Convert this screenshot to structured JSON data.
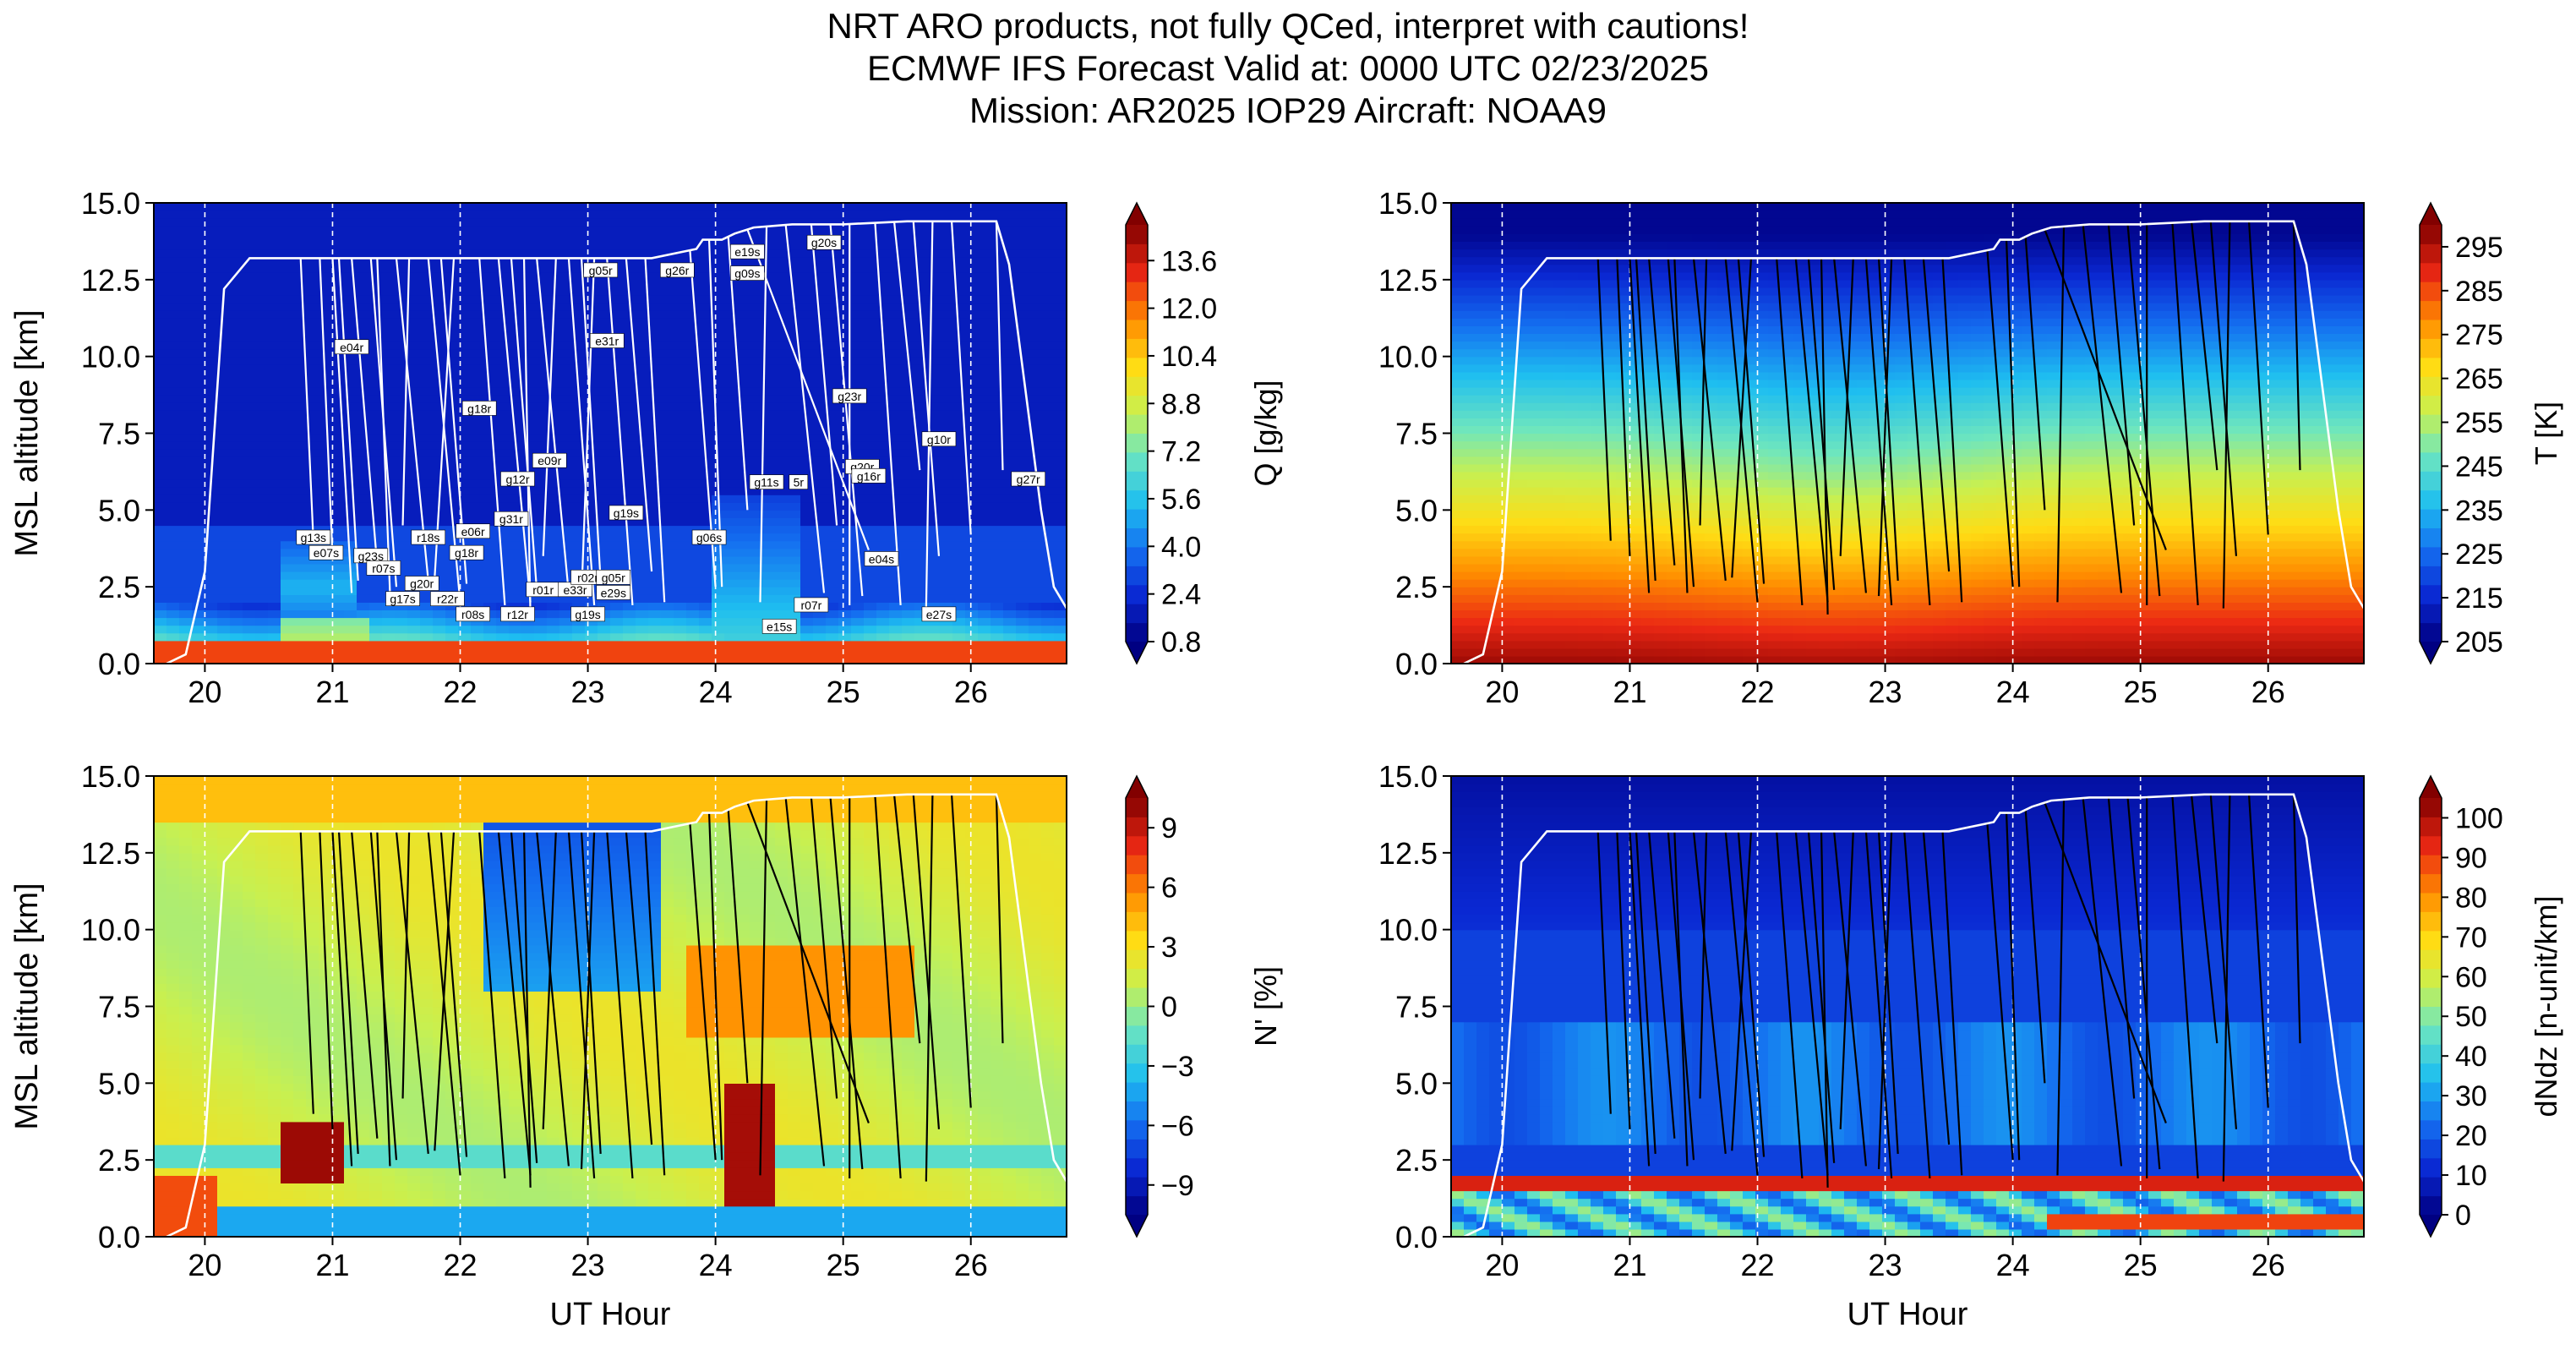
{
  "figure": {
    "title_lines": [
      "NRT ARO products, not fully QCed, interpret with cautions!",
      "ECMWF IFS Forecast Valid at: 0000 UTC 02/23/2025",
      "Mission: AR2025 IOP29 Aircraft: NOAA9"
    ]
  },
  "chart_data": [
    {
      "type": "heatmap",
      "panel": "top-left",
      "variable": "Q",
      "xlabel": "",
      "ylabel": "MSL altitude [km]",
      "colorbar_label": "Q [g/kg]",
      "colorbar_ticks": [
        0.8,
        2.4,
        4.0,
        5.6,
        7.2,
        8.8,
        10.4,
        12.0,
        13.6
      ],
      "clim": [
        0.8,
        14.8
      ],
      "xlim": [
        19.6,
        26.75
      ],
      "ylim": [
        0,
        15
      ],
      "xticks": [
        20,
        21,
        22,
        23,
        24,
        25,
        26
      ],
      "yticks": [
        0.0,
        2.5,
        5.0,
        7.5,
        10.0,
        12.5,
        15.0
      ],
      "overlay_color": "white",
      "sonde_labels": [
        {
          "label": "e04r",
          "x": 21.15,
          "y": 10.3
        },
        {
          "label": "g18r",
          "x": 22.15,
          "y": 8.3
        },
        {
          "label": "e09r",
          "x": 22.7,
          "y": 6.6
        },
        {
          "label": "g05r",
          "x": 23.1,
          "y": 12.8
        },
        {
          "label": "e31r",
          "x": 23.15,
          "y": 10.5
        },
        {
          "label": "g26r",
          "x": 23.7,
          "y": 12.8
        },
        {
          "label": "e19s",
          "x": 24.25,
          "y": 13.4
        },
        {
          "label": "g09s",
          "x": 24.25,
          "y": 12.7
        },
        {
          "label": "g20s",
          "x": 24.85,
          "y": 13.7
        },
        {
          "label": "g23r",
          "x": 25.05,
          "y": 8.7
        },
        {
          "label": "g10r",
          "x": 25.75,
          "y": 7.3
        },
        {
          "label": "g27r",
          "x": 26.45,
          "y": 6.0
        },
        {
          "label": "g12r",
          "x": 22.45,
          "y": 6.0
        },
        {
          "label": "g31r",
          "x": 22.4,
          "y": 4.7
        },
        {
          "label": "g19s",
          "x": 23.3,
          "y": 4.9
        },
        {
          "label": "g13s",
          "x": 20.85,
          "y": 4.1
        },
        {
          "label": "e07s",
          "x": 20.95,
          "y": 3.6
        },
        {
          "label": "g23s",
          "x": 21.3,
          "y": 3.5
        },
        {
          "label": "r07s",
          "x": 21.4,
          "y": 3.1
        },
        {
          "label": "r18s",
          "x": 21.75,
          "y": 4.1
        },
        {
          "label": "e06r",
          "x": 22.1,
          "y": 4.3
        },
        {
          "label": "g18r",
          "x": 22.05,
          "y": 3.6
        },
        {
          "label": "g20r",
          "x": 21.7,
          "y": 2.6
        },
        {
          "label": "g17s",
          "x": 21.55,
          "y": 2.1
        },
        {
          "label": "r22r",
          "x": 21.9,
          "y": 2.1
        },
        {
          "label": "r08s",
          "x": 22.1,
          "y": 1.6
        },
        {
          "label": "r12r",
          "x": 22.45,
          "y": 1.6
        },
        {
          "label": "r01r",
          "x": 22.65,
          "y": 2.4
        },
        {
          "label": "e33r",
          "x": 22.9,
          "y": 2.4
        },
        {
          "label": "r02r",
          "x": 23.0,
          "y": 2.8
        },
        {
          "label": "g05r",
          "x": 23.2,
          "y": 2.8
        },
        {
          "label": "e29s",
          "x": 23.2,
          "y": 2.3
        },
        {
          "label": "g19s",
          "x": 23.0,
          "y": 1.6
        },
        {
          "label": "g06s",
          "x": 23.95,
          "y": 4.1
        },
        {
          "label": "g11s",
          "x": 24.4,
          "y": 5.9
        },
        {
          "label": "5r",
          "x": 24.65,
          "y": 5.9
        },
        {
          "label": "g20r",
          "x": 25.15,
          "y": 6.4
        },
        {
          "label": "g16r",
          "x": 25.2,
          "y": 6.1
        },
        {
          "label": "e04s",
          "x": 25.3,
          "y": 3.4
        },
        {
          "label": "r07r",
          "x": 24.75,
          "y": 1.9
        },
        {
          "label": "e15s",
          "x": 24.5,
          "y": 1.2
        },
        {
          "label": "e27s",
          "x": 25.75,
          "y": 1.6
        }
      ]
    },
    {
      "type": "heatmap",
      "panel": "top-right",
      "variable": "T",
      "xlabel": "",
      "ylabel": "",
      "colorbar_label": "T [K]",
      "colorbar_ticks": [
        205,
        215,
        225,
        235,
        245,
        255,
        265,
        275,
        285,
        295
      ],
      "clim": [
        205,
        300
      ],
      "xlim": [
        19.6,
        26.75
      ],
      "ylim": [
        0,
        15
      ],
      "xticks": [
        20,
        21,
        22,
        23,
        24,
        25,
        26
      ],
      "yticks": [
        0.0,
        2.5,
        5.0,
        7.5,
        10.0,
        12.5,
        15.0
      ],
      "overlay_color": "black",
      "sonde_labels": []
    },
    {
      "type": "heatmap",
      "panel": "bottom-left",
      "variable": "N'",
      "xlabel": "UT Hour",
      "ylabel": "MSL altitude [km]",
      "colorbar_label": "N' [%]",
      "colorbar_ticks": [
        -9,
        -6,
        -3,
        0,
        3,
        6,
        9
      ],
      "clim": [
        -10.5,
        10.5
      ],
      "xlim": [
        19.6,
        26.75
      ],
      "ylim": [
        0,
        15
      ],
      "xticks": [
        20,
        21,
        22,
        23,
        24,
        25,
        26
      ],
      "yticks": [
        0.0,
        2.5,
        5.0,
        7.5,
        10.0,
        12.5,
        15.0
      ],
      "overlay_color": "black",
      "sonde_labels": []
    },
    {
      "type": "heatmap",
      "panel": "bottom-right",
      "variable": "dNdz",
      "xlabel": "UT Hour",
      "ylabel": "",
      "colorbar_label": "dNdz [n-unit/km]",
      "colorbar_ticks": [
        0,
        10,
        20,
        30,
        40,
        50,
        60,
        70,
        80,
        90,
        100
      ],
      "clim": [
        0,
        105
      ],
      "xlim": [
        19.6,
        26.75
      ],
      "ylim": [
        0,
        15
      ],
      "xticks": [
        20,
        21,
        22,
        23,
        24,
        25,
        26
      ],
      "yticks": [
        0.0,
        2.5,
        5.0,
        7.5,
        10.0,
        12.5,
        15.0
      ],
      "overlay_color": "black",
      "sonde_labels": []
    }
  ],
  "flight_track": {
    "x": [
      19.7,
      19.85,
      20.0,
      20.15,
      20.35,
      21.0,
      21.5,
      22.0,
      22.5,
      23.0,
      23.5,
      23.85,
      23.9,
      24.05,
      24.15,
      24.3,
      24.6,
      25.0,
      25.5,
      26.0,
      26.2,
      26.3,
      26.55,
      26.65,
      26.75
    ],
    "y": [
      0.0,
      0.3,
      3.0,
      12.2,
      13.2,
      13.2,
      13.2,
      13.2,
      13.2,
      13.2,
      13.2,
      13.5,
      13.8,
      13.8,
      14.0,
      14.2,
      14.3,
      14.3,
      14.4,
      14.4,
      14.4,
      13.0,
      5.0,
      2.5,
      1.8
    ]
  },
  "sonde_drops": {
    "x_top": [
      20.75,
      20.9,
      21.0,
      21.05,
      21.15,
      21.3,
      21.35,
      21.5,
      21.6,
      21.75,
      21.85,
      21.95,
      22.15,
      22.3,
      22.4,
      22.5,
      22.6,
      22.75,
      22.85,
      22.95,
      23.05,
      23.15,
      23.3,
      23.45,
      23.8,
      23.95,
      24.1,
      24.25,
      24.4,
      24.55,
      24.75,
      24.9,
      25.05,
      25.25,
      25.4,
      25.55,
      25.7,
      25.85,
      26.2
    ],
    "x_bottom": [
      20.85,
      21.0,
      21.15,
      21.2,
      21.35,
      21.5,
      21.45,
      21.75,
      21.55,
      22.0,
      22.05,
      21.8,
      22.35,
      22.55,
      22.6,
      22.55,
      22.85,
      22.65,
      23.05,
      23.1,
      22.95,
      23.35,
      23.5,
      23.6,
      24.0,
      24.05,
      24.25,
      25.2,
      24.35,
      24.85,
      24.95,
      25.15,
      25.05,
      25.45,
      25.6,
      25.75,
      25.65,
      26.0,
      26.25
    ],
    "y_bottom": [
      4.0,
      3.5,
      2.3,
      2.7,
      3.2,
      2.5,
      2.3,
      2.7,
      4.5,
      2.0,
      2.6,
      2.8,
      1.9,
      2.0,
      2.4,
      1.6,
      2.3,
      3.5,
      1.9,
      2.7,
      2.2,
      1.9,
      3.0,
      2.0,
      2.5,
      2.5,
      5.0,
      3.7,
      2.0,
      2.3,
      4.5,
      2.2,
      1.9,
      1.9,
      6.3,
      3.5,
      1.8,
      4.2,
      6.3
    ]
  }
}
